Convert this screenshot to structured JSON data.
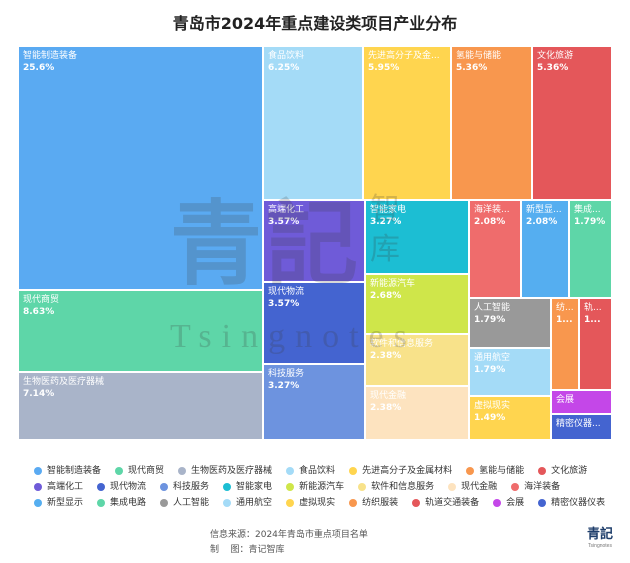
{
  "chart_data": {
    "type": "treemap",
    "title": "青岛市2024年重点建设类项目产业分布",
    "unit": "%",
    "items": [
      {
        "label": "智能制造装备",
        "value_text": "25.6%",
        "value": 25.6,
        "color": "#5aaaf2"
      },
      {
        "label": "现代商贸",
        "value_text": "8.63%",
        "value": 8.63,
        "color": "#5ed6a8"
      },
      {
        "label": "生物医药及医疗器械",
        "value_text": "7.14%",
        "value": 7.14,
        "color": "#a9b4c9"
      },
      {
        "label": "食品饮料",
        "value_text": "6.25%",
        "value": 6.25,
        "color": "#a4dbf7"
      },
      {
        "label": "先进高分子及金属材料",
        "short_label": "先进高分子及金...",
        "value_text": "5.95%",
        "value": 5.95,
        "color": "#ffd54f"
      },
      {
        "label": "氢能与储能",
        "value_text": "5.36%",
        "value": 5.36,
        "color": "#f8974e"
      },
      {
        "label": "文化旅游",
        "value_text": "5.36%",
        "value": 5.36,
        "color": "#e4575a"
      },
      {
        "label": "高端化工",
        "value_text": "3.57%",
        "value": 3.57,
        "color": "#6f5bd8"
      },
      {
        "label": "现代物流",
        "value_text": "3.57%",
        "value": 3.57,
        "color": "#4464d0"
      },
      {
        "label": "科技服务",
        "value_text": "3.27%",
        "value": 3.27,
        "color": "#6d93df"
      },
      {
        "label": "智能家电",
        "value_text": "3.27%",
        "value": 3.27,
        "color": "#1cbed3"
      },
      {
        "label": "新能源汽车",
        "value_text": "2.68%",
        "value": 2.68,
        "color": "#cfe64a"
      },
      {
        "label": "软件和信息服务",
        "value_text": "2.38%",
        "value": 2.38,
        "color": "#f8e28a"
      },
      {
        "label": "现代金融",
        "value_text": "2.38%",
        "value": 2.38,
        "color": "#fde3bf"
      },
      {
        "label": "海洋装备",
        "short_label": "海洋装...",
        "value_text": "2.08%",
        "value": 2.08,
        "color": "#ef6c6c"
      },
      {
        "label": "新型显示",
        "short_label": "新型显...",
        "value_text": "2.08%",
        "value": 2.08,
        "color": "#55aef0"
      },
      {
        "label": "集成电路",
        "short_label": "集成...",
        "value_text": "1.79%",
        "value": 1.79,
        "color": "#5ed6a8"
      },
      {
        "label": "人工智能",
        "value_text": "1.79%",
        "value": 1.79,
        "color": "#999999"
      },
      {
        "label": "通用航空",
        "value_text": "1.79%",
        "value": 1.79,
        "color": "#a4dbf7"
      },
      {
        "label": "虚拟现实",
        "value_text": "1.49%",
        "value": 1.49,
        "color": "#ffd54f"
      },
      {
        "label": "纺织服装",
        "short_label": "纺...",
        "value_text": "1...",
        "value": 1.19,
        "color": "#f8974e"
      },
      {
        "label": "轨道交通装备",
        "short_label": "轨...",
        "value_text": "1...",
        "value": 1.19,
        "color": "#e4575a"
      },
      {
        "label": "会展",
        "value_text": "",
        "value": 0.89,
        "color": "#c447e8"
      },
      {
        "label": "精密仪器仪表",
        "short_label": "精密仪器...",
        "value_text": "",
        "value": 0.89,
        "color": "#4464d0"
      }
    ]
  },
  "watermark": {
    "main": "青記",
    "sub": "智库",
    "en": "Tsingnotes"
  },
  "footer": {
    "source_line": "信息来源：2024年青岛市重点项目名单",
    "maker_line": "制    图：青记智库"
  },
  "logo": {
    "main": "青記",
    "sub": "Tsingnotes"
  }
}
